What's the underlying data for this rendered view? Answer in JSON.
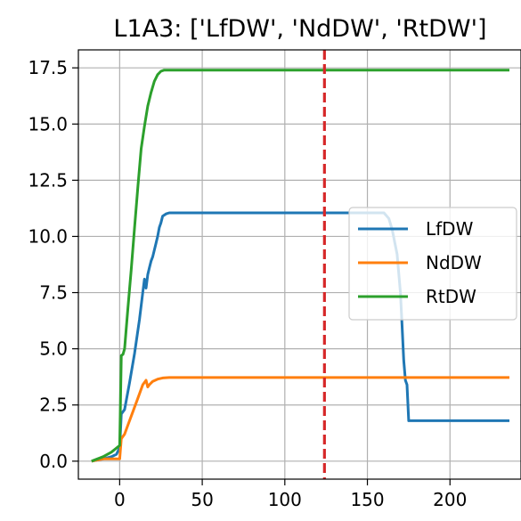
{
  "chart_data": {
    "type": "line",
    "title": "L1A3: ['LfDW', 'NdDW', 'RtDW']",
    "xlabel": "",
    "ylabel": "",
    "xlim": [
      -25,
      243
    ],
    "ylim": [
      -0.8,
      18.3
    ],
    "xticks": [
      0,
      50,
      100,
      150,
      200
    ],
    "xtick_labels": [
      "0",
      "50",
      "100",
      "150",
      "200"
    ],
    "yticks": [
      0.0,
      2.5,
      5.0,
      7.5,
      10.0,
      12.5,
      15.0,
      17.5
    ],
    "ytick_labels": [
      "0.0",
      "2.5",
      "5.0",
      "7.5",
      "10.0",
      "12.5",
      "15.0",
      "17.5"
    ],
    "grid": true,
    "legend_position": "center-right",
    "vline": {
      "x": 124,
      "color": "#d62728",
      "style": "dashed"
    },
    "series": [
      {
        "name": "LfDW",
        "color": "#1f77b4",
        "x": [
          -17,
          -10,
          -5,
          -2,
          0,
          1,
          3,
          6,
          9,
          12,
          14,
          15,
          16,
          17,
          18,
          19,
          20,
          22,
          23,
          24,
          25,
          26,
          28,
          30,
          35,
          60,
          100,
          140,
          150,
          160,
          163,
          165,
          168,
          170,
          171,
          172,
          173,
          174,
          175,
          180,
          236
        ],
        "y": [
          0.0,
          0.1,
          0.2,
          0.3,
          0.6,
          2.1,
          2.3,
          3.5,
          4.8,
          6.3,
          7.5,
          8.1,
          7.7,
          8.3,
          8.6,
          8.9,
          9.1,
          9.7,
          10.0,
          10.4,
          10.6,
          10.9,
          11.0,
          11.05,
          11.05,
          11.05,
          11.05,
          11.05,
          11.05,
          11.05,
          10.8,
          10.3,
          9.2,
          7.5,
          6.0,
          4.5,
          3.6,
          3.4,
          1.8,
          1.8,
          1.8
        ]
      },
      {
        "name": "NdDW",
        "color": "#ff7f0e",
        "x": [
          -17,
          -10,
          -5,
          0,
          1,
          3,
          5,
          8,
          11,
          14,
          16,
          17,
          18,
          20,
          23,
          26,
          30,
          50,
          100,
          150,
          200,
          236
        ],
        "y": [
          0.0,
          0.1,
          0.1,
          0.1,
          1.0,
          1.2,
          1.6,
          2.2,
          2.8,
          3.4,
          3.6,
          3.3,
          3.4,
          3.55,
          3.65,
          3.7,
          3.72,
          3.72,
          3.72,
          3.72,
          3.72,
          3.72
        ]
      },
      {
        "name": "RtDW",
        "color": "#2ca02c",
        "x": [
          -17,
          -10,
          -5,
          0,
          1,
          2,
          3,
          5,
          7,
          9,
          11,
          13,
          15,
          17,
          19,
          21,
          23,
          25,
          27,
          30,
          50,
          100,
          150,
          200,
          236
        ],
        "y": [
          0.0,
          0.2,
          0.4,
          0.7,
          4.7,
          4.75,
          5.0,
          6.8,
          8.5,
          10.4,
          12.2,
          13.9,
          14.9,
          15.8,
          16.4,
          16.9,
          17.2,
          17.35,
          17.4,
          17.4,
          17.4,
          17.4,
          17.4,
          17.4,
          17.4
        ]
      }
    ]
  }
}
